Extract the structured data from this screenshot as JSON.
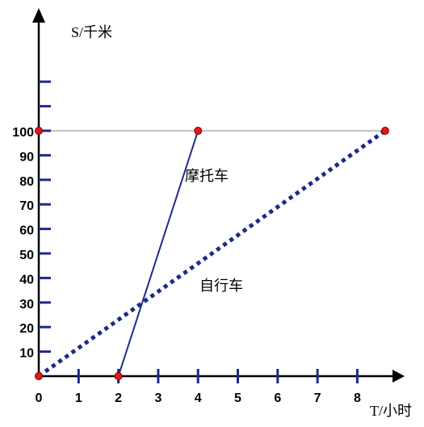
{
  "chart_data": {
    "type": "line",
    "y_axis_label": "S/千米",
    "x_axis_label": "T/小时",
    "origin_label": "0",
    "x_ticks": [
      0,
      1,
      2,
      3,
      4,
      5,
      6,
      7,
      8
    ],
    "x_tick_labels": [
      "1",
      "2",
      "3",
      "4",
      "5",
      "6",
      "7",
      "8"
    ],
    "y_ticks": [
      10,
      20,
      30,
      40,
      50,
      60,
      70,
      80,
      90,
      100,
      110,
      120
    ],
    "y_tick_labels": [
      "10",
      "20",
      "30",
      "40",
      "50",
      "60",
      "70",
      "80",
      "90",
      "100"
    ],
    "xlim": [
      0,
      9
    ],
    "ylim": [
      0,
      125
    ],
    "reference_line_y": 100,
    "series": [
      {
        "name": "摩托车",
        "style": "solid",
        "color": "#1c2a8c",
        "points": [
          [
            2,
            0
          ],
          [
            4,
            100
          ]
        ]
      },
      {
        "name": "自行车",
        "style": "dotted",
        "color": "#1c2a8c",
        "points": [
          [
            0,
            0
          ],
          [
            8.7,
            100
          ]
        ]
      }
    ],
    "markers": [
      [
        0,
        0
      ],
      [
        2,
        0
      ],
      [
        0,
        100
      ],
      [
        4,
        100
      ],
      [
        8.7,
        100
      ]
    ],
    "colors": {
      "axis": "#000000",
      "tick": "#1c2a8c",
      "marker": "#e01818",
      "reference_line": "#888888"
    }
  }
}
